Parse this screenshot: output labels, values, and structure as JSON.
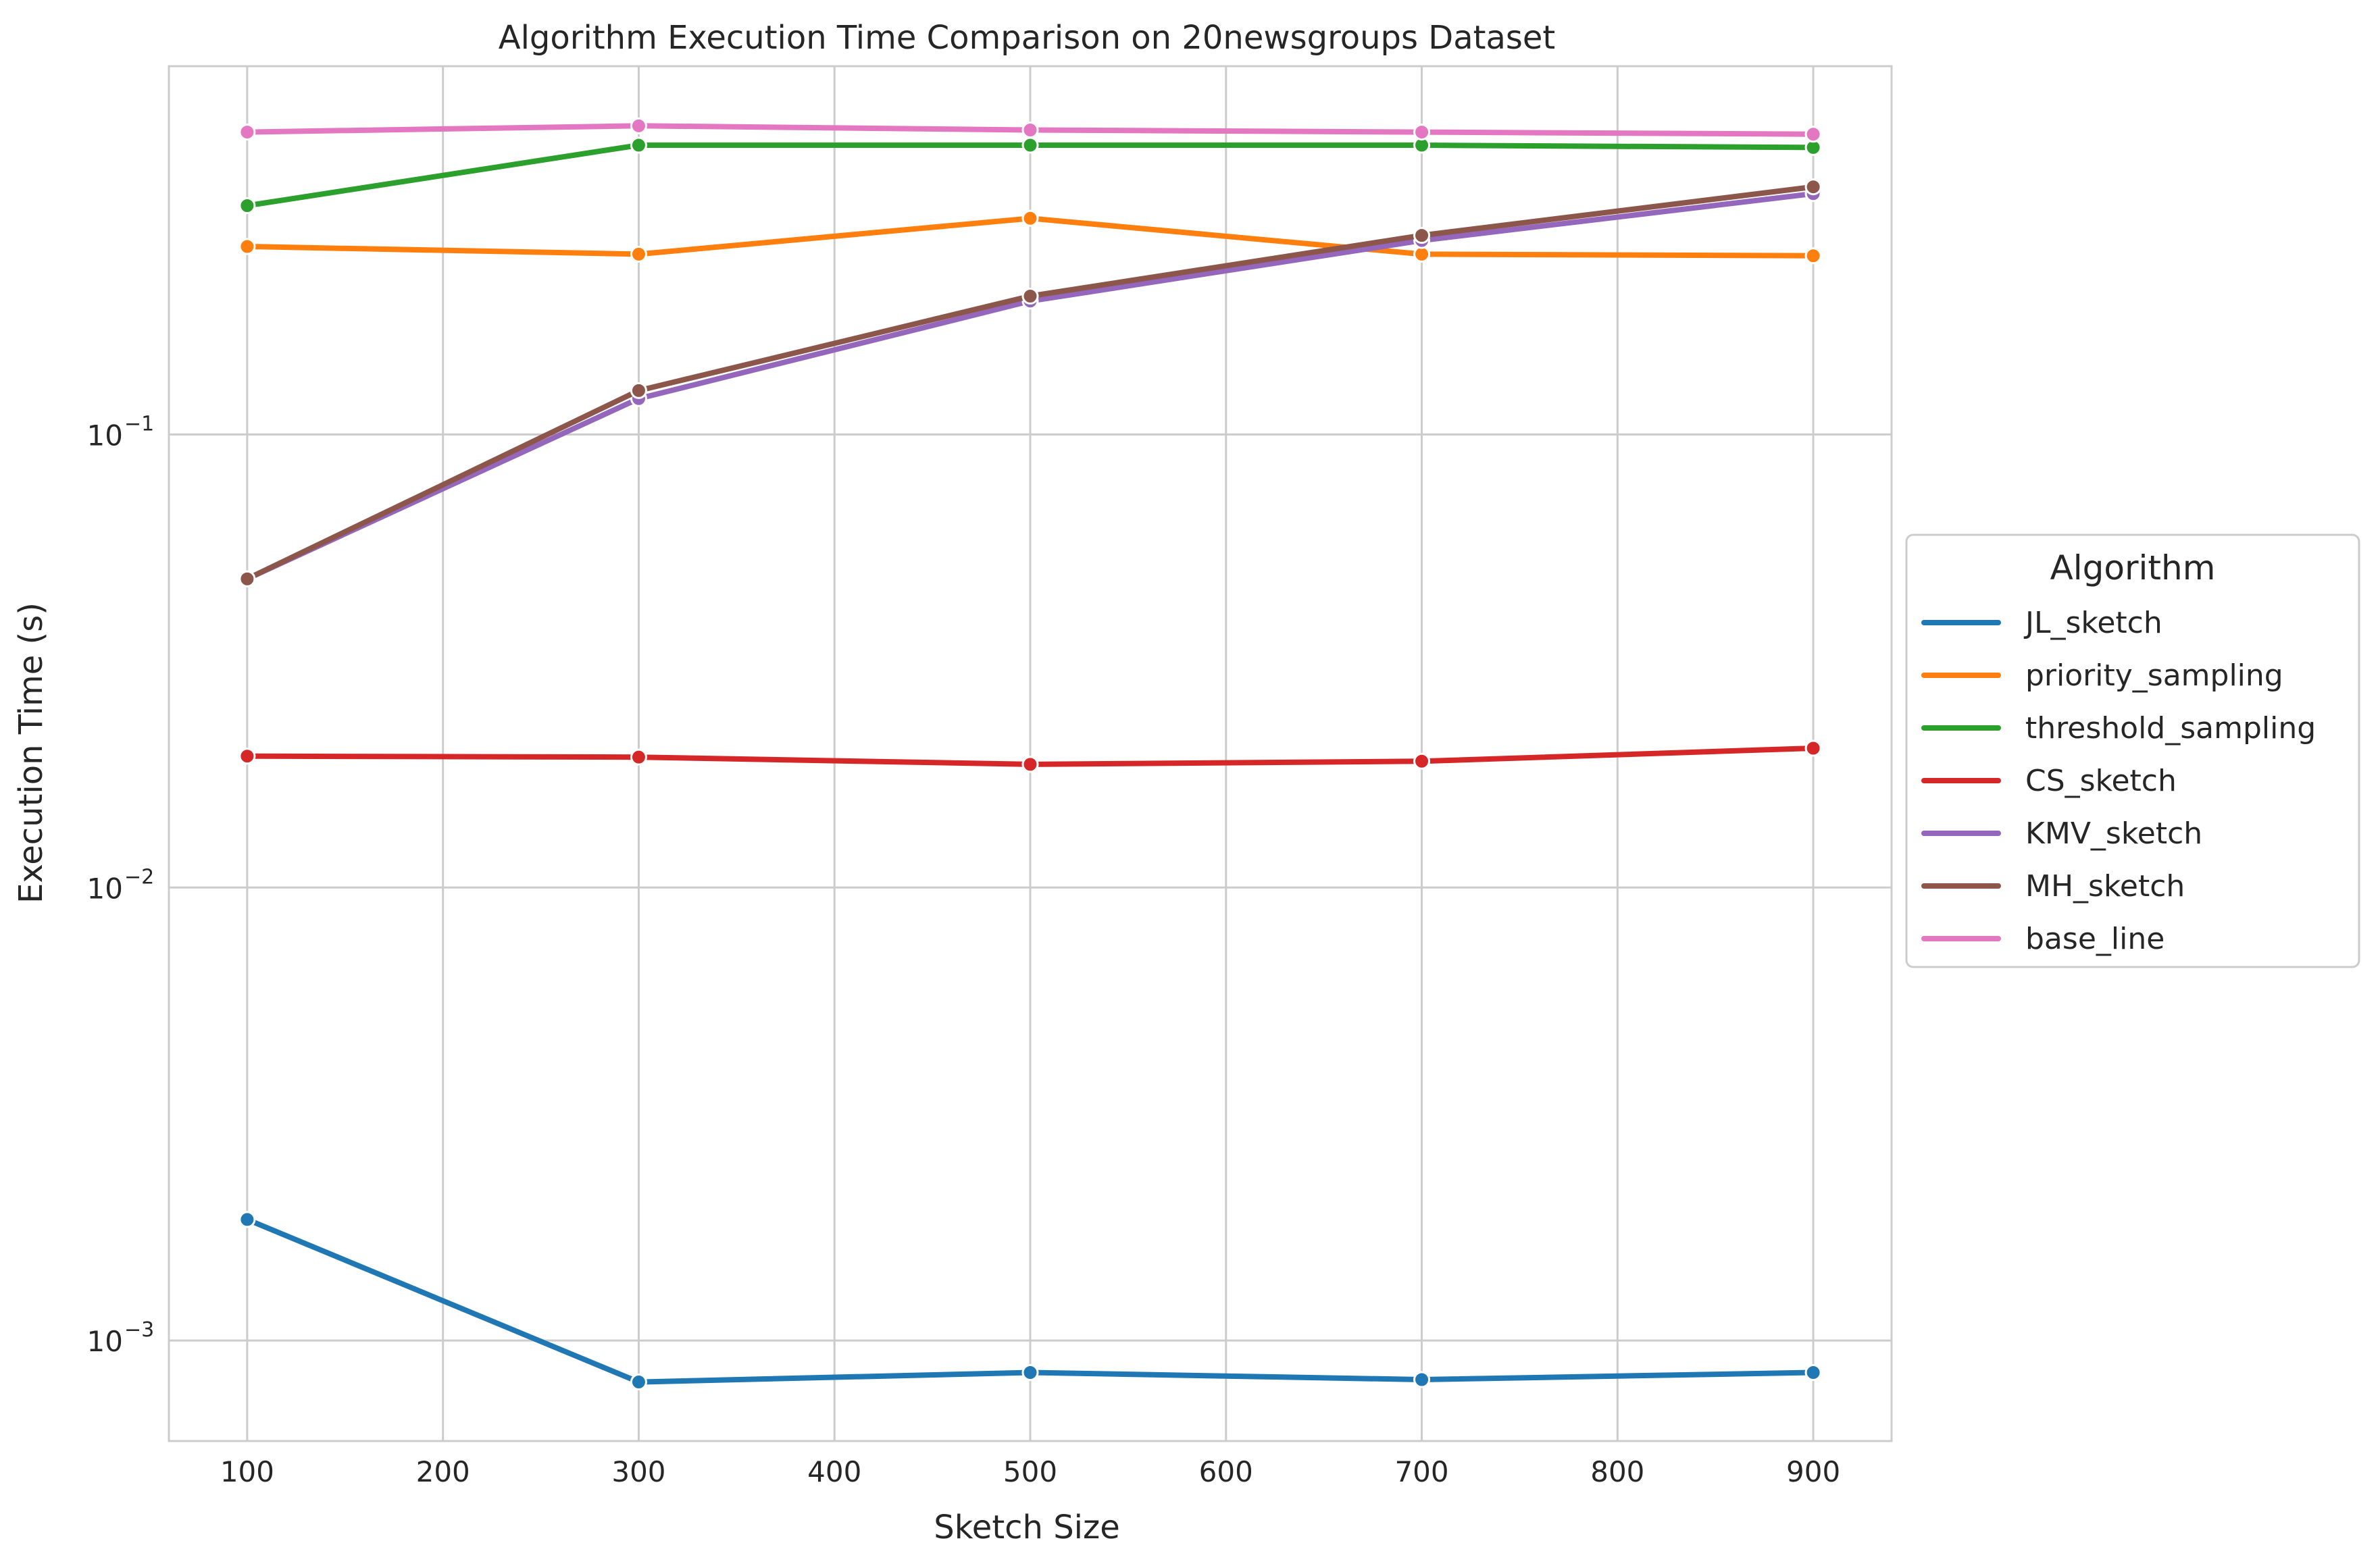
{
  "chart_data": {
    "type": "line",
    "title": "Algorithm Execution Time Comparison on 20newsgroups Dataset",
    "xlabel": "Sketch Size",
    "ylabel": "Execution Time (s)",
    "x": [
      100,
      300,
      500,
      700,
      900
    ],
    "x_ticks": [
      100,
      200,
      300,
      400,
      500,
      600,
      700,
      800,
      900
    ],
    "xlim": [
      60,
      940
    ],
    "y_scale": "log",
    "ylim": [
      0.0006,
      0.65
    ],
    "y_ticks": [
      {
        "base": "10",
        "exp": "−3",
        "value": 0.001
      },
      {
        "base": "10",
        "exp": "−2",
        "value": 0.01
      },
      {
        "base": "10",
        "exp": "−1",
        "value": 0.1
      }
    ],
    "grid": true,
    "legend": {
      "title": "Algorithm",
      "placement": "center-right outside"
    },
    "series": [
      {
        "name": "JL_sketch",
        "color": "#1f77b4",
        "values": [
          0.00185,
          0.00081,
          0.00085,
          0.00082,
          0.00085
        ]
      },
      {
        "name": "priority_sampling",
        "color": "#ff7f0e",
        "values": [
          0.26,
          0.25,
          0.3,
          0.25,
          0.248
        ]
      },
      {
        "name": "threshold_sampling",
        "color": "#2ca02c",
        "values": [
          0.32,
          0.435,
          0.435,
          0.435,
          0.43
        ]
      },
      {
        "name": "CS_sketch",
        "color": "#d62728",
        "values": [
          0.0195,
          0.0194,
          0.0187,
          0.019,
          0.0203
        ]
      },
      {
        "name": "KMV_sketch",
        "color": "#9467bd",
        "values": [
          0.048,
          0.12,
          0.197,
          0.268,
          0.34
        ]
      },
      {
        "name": "MH_sketch",
        "color": "#8c564b",
        "values": [
          0.048,
          0.125,
          0.202,
          0.275,
          0.352
        ]
      },
      {
        "name": "base_line",
        "color": "#e377c2",
        "values": [
          0.465,
          0.48,
          0.47,
          0.465,
          0.46
        ]
      }
    ]
  }
}
